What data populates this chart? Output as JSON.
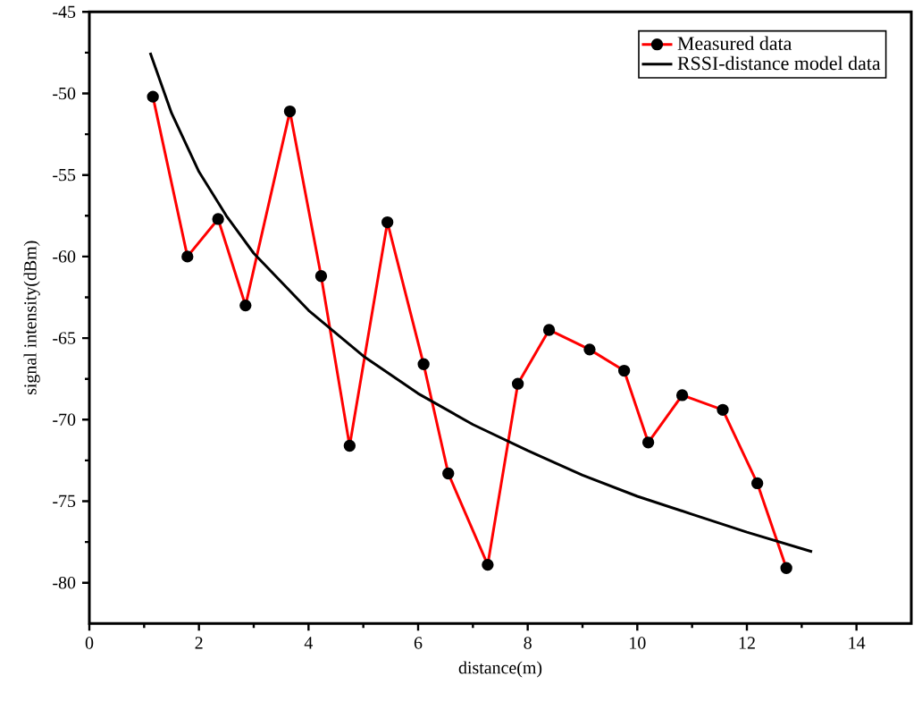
{
  "chart_data": {
    "type": "line",
    "xlabel": "distance(m)",
    "ylabel": "signal intensity(dBm)",
    "xlim": [
      0,
      15
    ],
    "ylim": [
      -82.5,
      -45
    ],
    "xticks": [
      0,
      2,
      4,
      6,
      8,
      10,
      12,
      14
    ],
    "yticks": [
      -80,
      -75,
      -70,
      -65,
      -60,
      -55,
      -50,
      -45
    ],
    "legend": "top right",
    "grid": false,
    "series": [
      {
        "name": "Measured data",
        "color": "#ff0000",
        "marker": "circle",
        "x": [
          1.16,
          1.79,
          2.35,
          2.85,
          3.66,
          4.23,
          4.75,
          5.44,
          6.1,
          6.55,
          7.27,
          7.82,
          8.39,
          9.13,
          9.76,
          10.2,
          10.82,
          11.56,
          12.19,
          12.72
        ],
        "values": [
          -50.2,
          -60.0,
          -57.7,
          -63.0,
          -51.1,
          -61.2,
          -71.6,
          -57.9,
          -66.6,
          -73.3,
          -78.9,
          -67.8,
          -64.5,
          -65.7,
          -67.0,
          -71.4,
          -68.5,
          -69.4,
          -73.9,
          -79.1
        ]
      },
      {
        "name": "RSSI-distance model data",
        "color": "#000000",
        "marker": "none",
        "x": [
          1.11,
          1.5,
          2,
          2.5,
          3,
          4,
          5,
          6,
          7,
          8,
          9,
          10,
          11,
          12,
          13.19
        ],
        "values": [
          -47.5,
          -51.2,
          -54.8,
          -57.5,
          -59.8,
          -63.3,
          -66.1,
          -68.4,
          -70.3,
          -71.9,
          -73.4,
          -74.7,
          -75.8,
          -76.9,
          -78.1
        ]
      }
    ]
  }
}
